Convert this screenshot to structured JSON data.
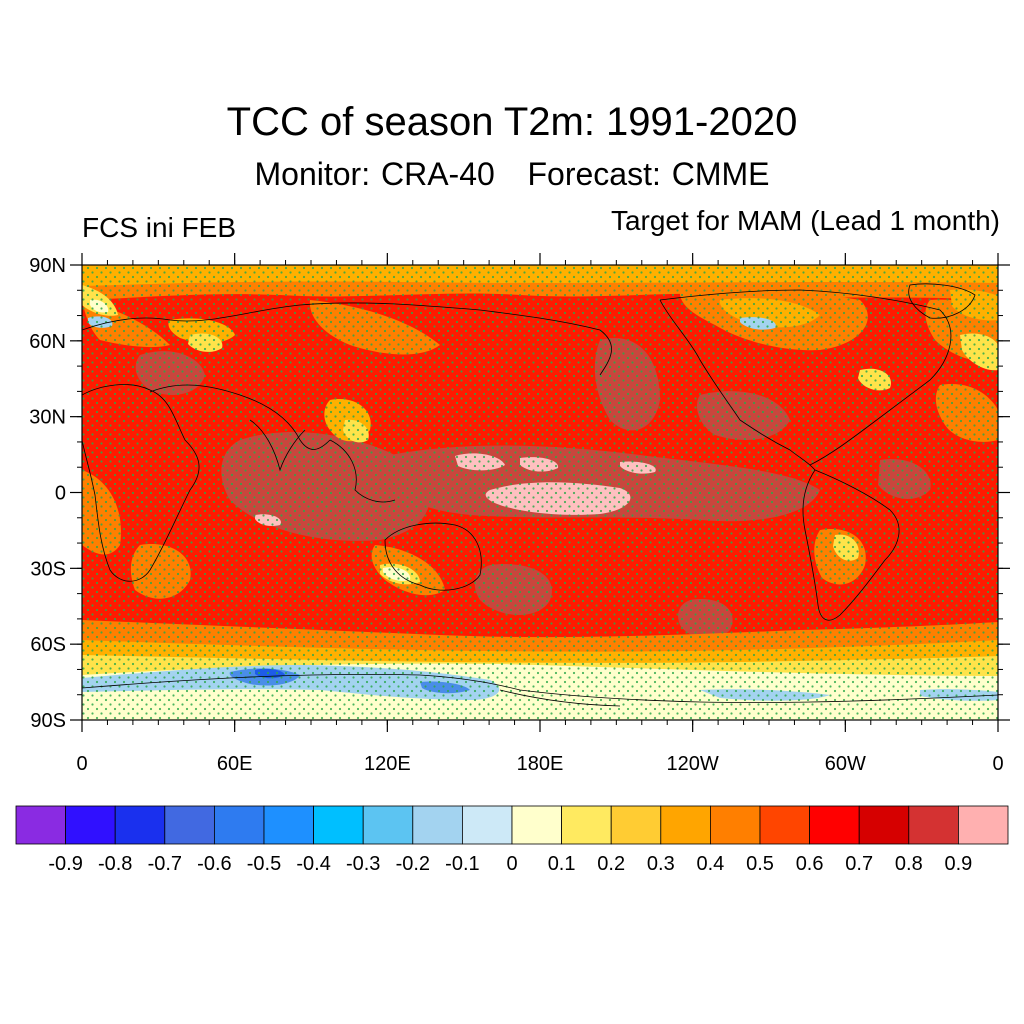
{
  "title": "TCC of season T2m: 1991-2020",
  "subtitle": {
    "monitor": "Monitor: CRA-40",
    "forecast": "Forecast: CMME"
  },
  "left_label": "FCS ini FEB",
  "right_label": "Target for MAM (Lead 1 month)",
  "map": {
    "projection": "cylindrical-equidistant",
    "lon_range": [
      0,
      360
    ],
    "lat_range": [
      -90,
      90
    ],
    "lat_ticks": [
      {
        "value": 90,
        "label": "90N"
      },
      {
        "value": 60,
        "label": "60N"
      },
      {
        "value": 30,
        "label": "30N"
      },
      {
        "value": 0,
        "label": "0"
      },
      {
        "value": -30,
        "label": "30S"
      },
      {
        "value": -60,
        "label": "60S"
      },
      {
        "value": -90,
        "label": "90S"
      }
    ],
    "lon_ticks": [
      {
        "value": 0,
        "label": "0"
      },
      {
        "value": 60,
        "label": "60E"
      },
      {
        "value": 120,
        "label": "120E"
      },
      {
        "value": 180,
        "label": "180E"
      },
      {
        "value": 240,
        "label": "120W"
      },
      {
        "value": 300,
        "label": "60W"
      },
      {
        "value": 360,
        "label": "0"
      }
    ],
    "stipple_color": "#2aa84a",
    "coastline_color": "#000000"
  },
  "colorbar": {
    "colors": [
      "#8a2be2",
      "#3010ff",
      "#1a30ee",
      "#4169e1",
      "#2e7bf0",
      "#1e90ff",
      "#00bfff",
      "#5cc4f2",
      "#a3d3f0",
      "#cde9f7",
      "#ffffcc",
      "#ffea60",
      "#ffcc33",
      "#ffa500",
      "#ff7f00",
      "#ff4500",
      "#ff0000",
      "#d60000",
      "#d43232",
      "#ffb0b0"
    ],
    "labels": [
      "-0.9",
      "-0.8",
      "-0.7",
      "-0.6",
      "-0.5",
      "-0.4",
      "-0.3",
      "-0.2",
      "-0.1",
      "0",
      "0.1",
      "0.2",
      "0.3",
      "0.4",
      "0.5",
      "0.6",
      "0.7",
      "0.8",
      "0.9"
    ]
  }
}
